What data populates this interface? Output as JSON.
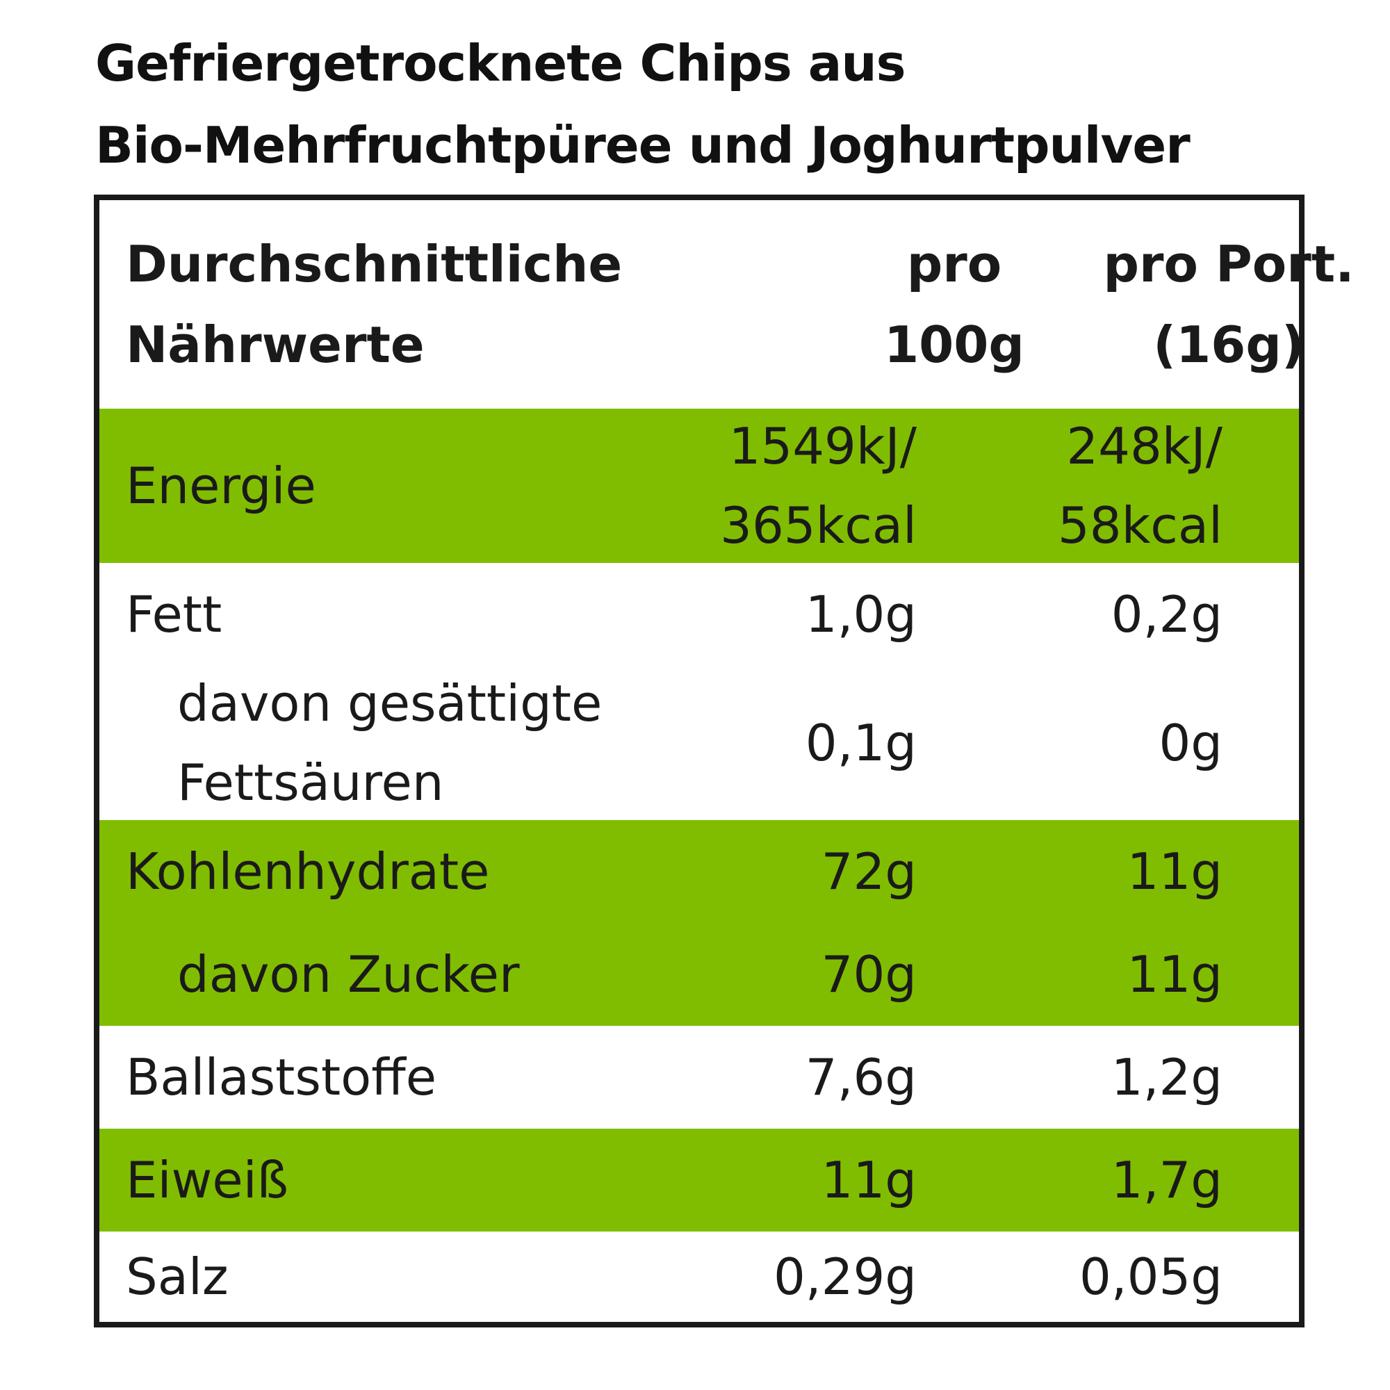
{
  "title": {
    "line1": "Gefriergetrocknete Chips aus",
    "line2": "Bio-Mehrfruchtpüree und Joghurtpulver"
  },
  "table": {
    "header": {
      "label_line1": "Durchschnittliche",
      "label_line2": "Nährwerte",
      "col1_line1": "pro",
      "col1_line2": "100g",
      "col2_line1": "pro Port.",
      "col2_line2": "(16g)"
    },
    "rows": [
      {
        "label": "Energie",
        "per100_line1": "1549kJ/",
        "per100_line2": "365kcal",
        "perPortion_line1": "248kJ/",
        "perPortion_line2": "58kcal"
      },
      {
        "label": "Fett",
        "per100": "1,0g",
        "perPortion": "0,2g"
      },
      {
        "label_line1": "davon gesättigte",
        "label_line2": "Fettsäuren",
        "per100": "0,1g",
        "perPortion": "0g"
      },
      {
        "label": "Kohlenhydrate",
        "per100": "72g",
        "perPortion": "11g"
      },
      {
        "label": "davon Zucker",
        "per100": "70g",
        "perPortion": "11g"
      },
      {
        "label": "Ballaststoffe",
        "per100": "7,6g",
        "perPortion": "1,2g"
      },
      {
        "label": "Eiweiß",
        "per100": "11g",
        "perPortion": "1,7g"
      },
      {
        "label": "Salz",
        "per100": "0,29g",
        "perPortion": "0,05g"
      }
    ]
  },
  "colors": {
    "highlight": "#80bd00",
    "border": "#1a1a1a",
    "text": "#1a1a1a"
  }
}
